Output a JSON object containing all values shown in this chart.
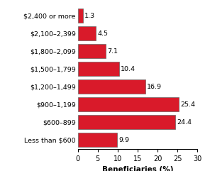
{
  "categories": [
    "$2,400 or more",
    "$2,100–2,399",
    "$1,800–2,099",
    "$1,500–1,799",
    "$1,200–1,499",
    "$900–1,199",
    "$600–899",
    "Less than $600"
  ],
  "values": [
    1.3,
    4.5,
    7.1,
    10.4,
    16.9,
    25.4,
    24.4,
    9.9
  ],
  "bar_color": "#D91A2A",
  "bar_edgecolor": "#666666",
  "xlabel": "Beneficiaries (%)",
  "xlim": [
    0,
    30
  ],
  "xticks": [
    0,
    5,
    10,
    15,
    20,
    25,
    30
  ],
  "ylabel_fontsize": 6.8,
  "xlabel_fontsize": 7.5,
  "tick_fontsize": 7.0,
  "value_fontsize": 6.8
}
